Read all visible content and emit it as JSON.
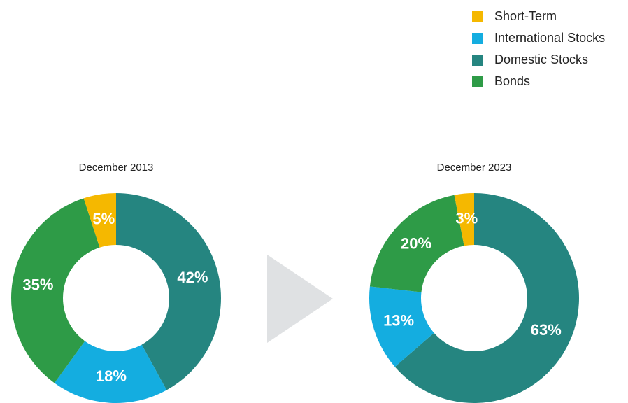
{
  "chart_data": [
    {
      "type": "donut",
      "title": "December 2013",
      "categories": [
        "Short-Term",
        "International Stocks",
        "Domestic Stocks",
        "Bonds"
      ],
      "colors": [
        "#f5b800",
        "#14ade0",
        "#258580",
        "#2e9b47"
      ],
      "values": [
        5,
        18,
        42,
        35
      ]
    },
    {
      "type": "donut",
      "title": "December 2023",
      "categories": [
        "Short-Term",
        "International Stocks",
        "Domestic Stocks",
        "Bonds"
      ],
      "colors": [
        "#f5b800",
        "#14ade0",
        "#258580",
        "#2e9b47"
      ],
      "values": [
        3,
        13,
        63,
        20
      ]
    }
  ]
}
